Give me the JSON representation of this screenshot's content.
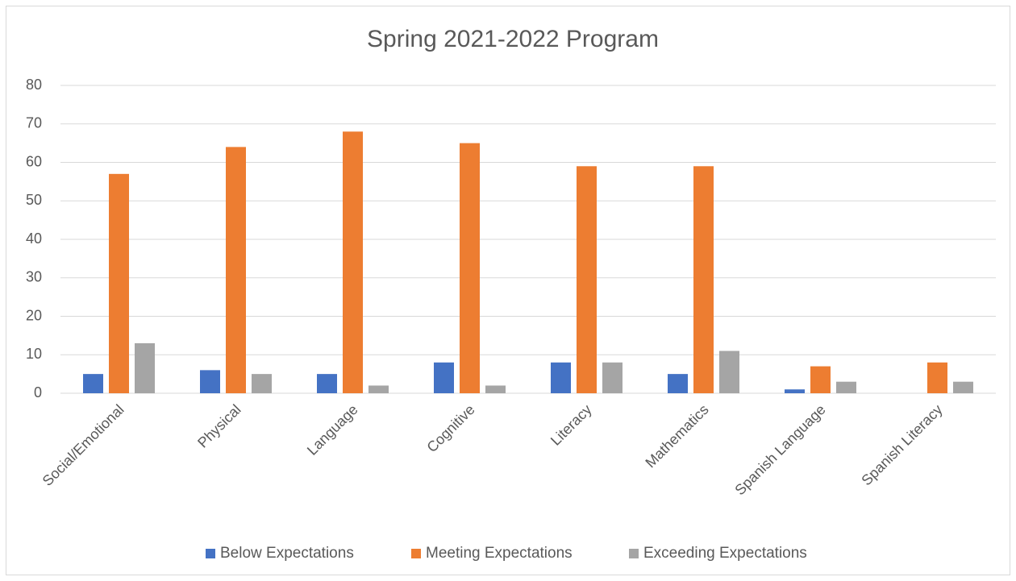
{
  "chart_data": {
    "type": "bar",
    "title": "Spring 2021-2022 Program",
    "categories": [
      "Social/Emotional",
      "Physical",
      "Language",
      "Cognitive",
      "Literacy",
      "Mathematics",
      "Spanish Language",
      "Spanish Literacy"
    ],
    "series": [
      {
        "name": "Below Expectations",
        "color": "#4472c4",
        "values": [
          5,
          6,
          5,
          8,
          8,
          5,
          1,
          0
        ]
      },
      {
        "name": "Meeting Expectations",
        "color": "#ed7d31",
        "values": [
          57,
          64,
          68,
          65,
          59,
          59,
          7,
          8
        ]
      },
      {
        "name": "Exceeding Expectations",
        "color": "#a5a5a5",
        "values": [
          13,
          5,
          2,
          2,
          8,
          11,
          3,
          3
        ]
      }
    ],
    "ylim": [
      0,
      80
    ],
    "yticks": [
      0,
      10,
      20,
      30,
      40,
      50,
      60,
      70,
      80
    ],
    "grid": true,
    "legend": "bottom"
  }
}
